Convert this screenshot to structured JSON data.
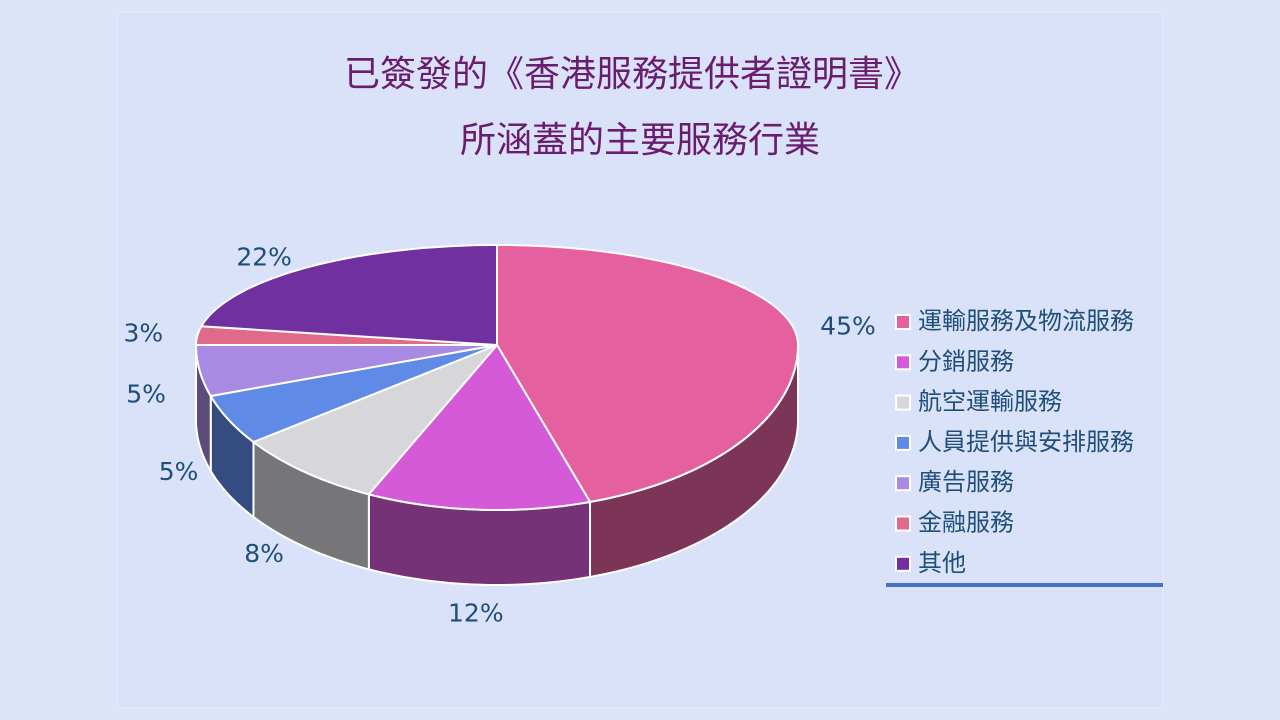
{
  "chart_data": {
    "type": "pie",
    "title": "已簽發的《香港服務提供者證明書》",
    "subtitle": "所涵蓋的主要服務行業",
    "categories": [
      "運輸服務及物流服務",
      "分銷服務",
      "航空運輸服務",
      "人員提供與安排服務",
      "廣告服務",
      "金融服務",
      "其他"
    ],
    "values": [
      45,
      12,
      8,
      5,
      5,
      3,
      22
    ],
    "value_labels": [
      "45%",
      "12%",
      "8%",
      "5%",
      "5%",
      "3%",
      "22%"
    ],
    "colors": [
      "#e4609f",
      "#d45ad8",
      "#d6d6db",
      "#5f8ae6",
      "#a88ae2",
      "#e06a8a",
      "#7030a0"
    ],
    "legend": "right"
  }
}
